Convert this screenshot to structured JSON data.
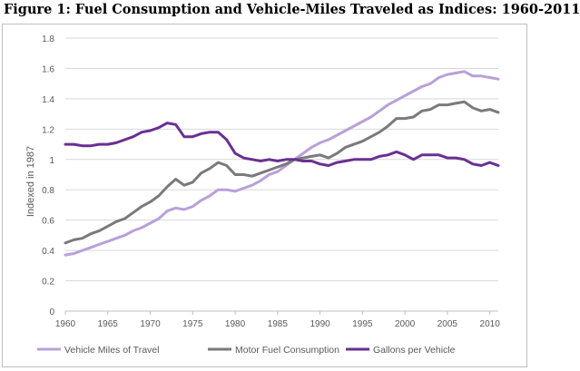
{
  "chart_data": {
    "type": "line",
    "title": "Figure 1: Fuel Consumption and Vehicle-Miles Traveled as Indices: 1960-2011",
    "xlabel": "",
    "ylabel": "Indexed in 1987",
    "xlim": [
      1960,
      2011
    ],
    "ylim": [
      0,
      1.8
    ],
    "x_ticks": [
      1960,
      1965,
      1970,
      1975,
      1980,
      1985,
      1990,
      1995,
      2000,
      2005,
      2010
    ],
    "y_ticks": [
      0,
      0.2,
      0.4,
      0.6,
      0.8,
      1,
      1.2,
      1.4,
      1.6,
      1.8
    ],
    "y_tick_labels": [
      "0",
      "0.2",
      "0.4",
      "0.6",
      "0.8",
      "1",
      "1.2",
      "1.4",
      "1.6",
      "1.8"
    ],
    "grid": "horizontal",
    "legend": "bottom",
    "x": [
      1960,
      1961,
      1962,
      1963,
      1964,
      1965,
      1966,
      1967,
      1968,
      1969,
      1970,
      1971,
      1972,
      1973,
      1974,
      1975,
      1976,
      1977,
      1978,
      1979,
      1980,
      1981,
      1982,
      1983,
      1984,
      1985,
      1986,
      1987,
      1988,
      1989,
      1990,
      1991,
      1992,
      1993,
      1994,
      1995,
      1996,
      1997,
      1998,
      1999,
      2000,
      2001,
      2002,
      2003,
      2004,
      2005,
      2006,
      2007,
      2008,
      2009,
      2010,
      2011
    ],
    "series": [
      {
        "name": "Vehicle Miles of Travel",
        "color": "#b9a0d9",
        "values": [
          0.37,
          0.38,
          0.4,
          0.42,
          0.44,
          0.46,
          0.48,
          0.5,
          0.53,
          0.55,
          0.58,
          0.61,
          0.66,
          0.68,
          0.67,
          0.69,
          0.73,
          0.76,
          0.8,
          0.8,
          0.79,
          0.81,
          0.83,
          0.86,
          0.9,
          0.92,
          0.96,
          1.0,
          1.04,
          1.08,
          1.11,
          1.13,
          1.16,
          1.19,
          1.22,
          1.25,
          1.28,
          1.32,
          1.36,
          1.39,
          1.42,
          1.45,
          1.48,
          1.5,
          1.54,
          1.56,
          1.57,
          1.58,
          1.55,
          1.55,
          1.54,
          1.53
        ]
      },
      {
        "name": "Motor Fuel Consumption",
        "color": "#7a7a7a",
        "values": [
          0.45,
          0.47,
          0.48,
          0.51,
          0.53,
          0.56,
          0.59,
          0.61,
          0.65,
          0.69,
          0.72,
          0.76,
          0.82,
          0.87,
          0.83,
          0.85,
          0.91,
          0.94,
          0.98,
          0.96,
          0.9,
          0.9,
          0.89,
          0.91,
          0.93,
          0.95,
          0.97,
          1.0,
          1.01,
          1.02,
          1.03,
          1.01,
          1.04,
          1.08,
          1.1,
          1.12,
          1.15,
          1.18,
          1.22,
          1.27,
          1.27,
          1.28,
          1.32,
          1.33,
          1.36,
          1.36,
          1.37,
          1.38,
          1.34,
          1.32,
          1.33,
          1.31
        ]
      },
      {
        "name": "Gallons per Vehicle",
        "color": "#6a2f93",
        "values": [
          1.1,
          1.1,
          1.09,
          1.09,
          1.1,
          1.1,
          1.11,
          1.13,
          1.15,
          1.18,
          1.19,
          1.21,
          1.24,
          1.23,
          1.15,
          1.15,
          1.17,
          1.18,
          1.18,
          1.13,
          1.04,
          1.01,
          1.0,
          0.99,
          1.0,
          0.99,
          1.0,
          1.0,
          0.99,
          0.99,
          0.97,
          0.96,
          0.98,
          0.99,
          1.0,
          1.0,
          1.0,
          1.02,
          1.03,
          1.05,
          1.03,
          1.0,
          1.03,
          1.03,
          1.03,
          1.01,
          1.01,
          1.0,
          0.97,
          0.96,
          0.98,
          0.96
        ]
      }
    ]
  }
}
